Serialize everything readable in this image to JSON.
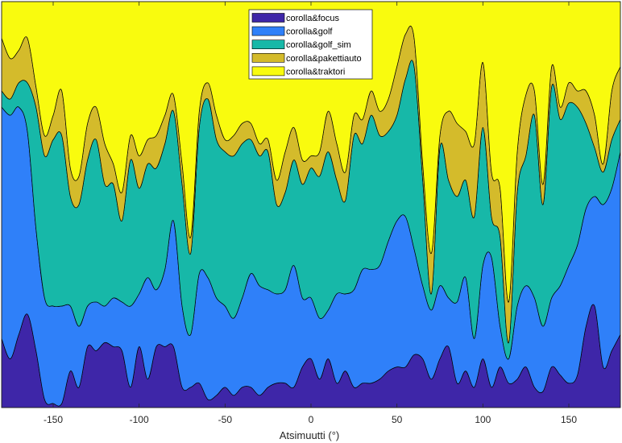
{
  "chart_data": {
    "type": "area",
    "stacked": true,
    "normalized": true,
    "title": "",
    "xlabel": "Atsimuutti (°)",
    "ylabel": "",
    "xlim": [
      -180,
      180
    ],
    "ylim": [
      0,
      1
    ],
    "xticks": [
      -150,
      -100,
      -50,
      0,
      50,
      100,
      150
    ],
    "grid": false,
    "legend_position": "top-center",
    "x": [
      -180,
      -175,
      -170,
      -165,
      -160,
      -155,
      -150,
      -145,
      -140,
      -135,
      -130,
      -125,
      -120,
      -115,
      -110,
      -105,
      -100,
      -95,
      -90,
      -85,
      -80,
      -75,
      -70,
      -65,
      -60,
      -55,
      -50,
      -45,
      -40,
      -35,
      -30,
      -25,
      -20,
      -15,
      -10,
      -5,
      0,
      5,
      10,
      15,
      20,
      25,
      30,
      35,
      40,
      45,
      50,
      55,
      60,
      65,
      70,
      75,
      80,
      85,
      90,
      95,
      100,
      105,
      110,
      115,
      120,
      125,
      130,
      135,
      140,
      145,
      150,
      155,
      160,
      165,
      170,
      175,
      180
    ],
    "series": [
      {
        "name": "corolla&focus",
        "color": "#3e26a8",
        "values": [
          0.17,
          0.12,
          0.18,
          0.23,
          0.14,
          0.02,
          0.01,
          0.01,
          0.09,
          0.05,
          0.15,
          0.14,
          0.16,
          0.15,
          0.14,
          0.05,
          0.15,
          0.07,
          0.15,
          0.15,
          0.15,
          0.05,
          0.05,
          0.06,
          0.02,
          0.03,
          0.05,
          0.03,
          0.05,
          0.05,
          0.03,
          0.05,
          0.06,
          0.06,
          0.05,
          0.1,
          0.12,
          0.07,
          0.12,
          0.06,
          0.09,
          0.05,
          0.06,
          0.06,
          0.07,
          0.09,
          0.1,
          0.1,
          0.13,
          0.12,
          0.07,
          0.12,
          0.15,
          0.06,
          0.09,
          0.05,
          0.12,
          0.05,
          0.1,
          0.06,
          0.07,
          0.1,
          0.05,
          0.04,
          0.1,
          0.08,
          0.06,
          0.08,
          0.2,
          0.25,
          0.1,
          0.14,
          0.18
        ]
      },
      {
        "name": "corolla&golf",
        "color": "#2f80f9",
        "values": [
          0.57,
          0.6,
          0.56,
          0.45,
          0.3,
          0.25,
          0.24,
          0.24,
          0.16,
          0.15,
          0.1,
          0.12,
          0.09,
          0.12,
          0.12,
          0.2,
          0.13,
          0.25,
          0.14,
          0.19,
          0.31,
          0.2,
          0.13,
          0.27,
          0.3,
          0.24,
          0.2,
          0.19,
          0.22,
          0.28,
          0.27,
          0.24,
          0.22,
          0.23,
          0.3,
          0.17,
          0.15,
          0.15,
          0.12,
          0.22,
          0.19,
          0.24,
          0.28,
          0.28,
          0.28,
          0.32,
          0.36,
          0.37,
          0.26,
          0.18,
          0.17,
          0.18,
          0.12,
          0.2,
          0.23,
          0.12,
          0.23,
          0.32,
          0.1,
          0.06,
          0.18,
          0.2,
          0.22,
          0.16,
          0.17,
          0.22,
          0.29,
          0.32,
          0.29,
          0.27,
          0.4,
          0.4,
          0.45
        ]
      },
      {
        "name": "corolla&golf_sim",
        "color": "#17b8a8",
        "values": [
          0.04,
          0.04,
          0.06,
          0.12,
          0.3,
          0.35,
          0.41,
          0.42,
          0.27,
          0.3,
          0.36,
          0.4,
          0.3,
          0.28,
          0.2,
          0.36,
          0.26,
          0.28,
          0.3,
          0.31,
          0.27,
          0.3,
          0.2,
          0.36,
          0.44,
          0.39,
          0.38,
          0.4,
          0.38,
          0.33,
          0.32,
          0.34,
          0.22,
          0.24,
          0.26,
          0.28,
          0.32,
          0.35,
          0.39,
          0.28,
          0.23,
          0.38,
          0.31,
          0.38,
          0.32,
          0.27,
          0.26,
          0.34,
          0.45,
          0.26,
          0.04,
          0.34,
          0.29,
          0.26,
          0.24,
          0.3,
          0.34,
          0.1,
          0.22,
          0.04,
          0.28,
          0.32,
          0.45,
          0.3,
          0.52,
          0.41,
          0.4,
          0.34,
          0.21,
          0.12,
          0.08,
          0.12,
          0.08
        ]
      },
      {
        "name": "corolla&pakettiauto",
        "color": "#d4bb2b",
        "values": [
          0.13,
          0.1,
          0.08,
          0.11,
          0.05,
          0.05,
          0.06,
          0.11,
          0.07,
          0.07,
          0.09,
          0.08,
          0.1,
          0.05,
          0.07,
          0.06,
          0.08,
          0.06,
          0.08,
          0.07,
          0.04,
          0.05,
          0.04,
          0.04,
          0.04,
          0.06,
          0.03,
          0.05,
          0.05,
          0.04,
          0.03,
          0.03,
          0.06,
          0.1,
          0.08,
          0.06,
          0.03,
          0.06,
          0.1,
          0.09,
          0.07,
          0.05,
          0.06,
          0.06,
          0.06,
          0.08,
          0.12,
          0.11,
          0.07,
          0.04,
          0.1,
          0.03,
          0.17,
          0.18,
          0.12,
          0.18,
          0.16,
          0.11,
          0.12,
          0.1,
          0.1,
          0.15,
          0.06,
          0.05,
          0.05,
          0.03,
          0.05,
          0.04,
          0.08,
          0.08,
          0.02,
          0.12,
          0.13
        ]
      },
      {
        "name": "corolla&traktori",
        "color": "#f9fb0e",
        "values": [
          0.09,
          0.14,
          0.12,
          0.09,
          0.21,
          0.33,
          0.28,
          0.22,
          0.41,
          0.43,
          0.3,
          0.26,
          0.35,
          0.4,
          0.47,
          0.33,
          0.38,
          0.34,
          0.33,
          0.28,
          0.23,
          0.4,
          0.58,
          0.27,
          0.2,
          0.28,
          0.34,
          0.33,
          0.3,
          0.3,
          0.35,
          0.34,
          0.44,
          0.37,
          0.31,
          0.39,
          0.38,
          0.37,
          0.27,
          0.35,
          0.42,
          0.28,
          0.29,
          0.22,
          0.27,
          0.24,
          0.16,
          0.08,
          0.09,
          0.4,
          0.62,
          0.33,
          0.27,
          0.3,
          0.32,
          0.35,
          0.15,
          0.42,
          0.46,
          0.74,
          0.37,
          0.23,
          0.22,
          0.45,
          0.16,
          0.26,
          0.2,
          0.22,
          0.22,
          0.28,
          0.4,
          0.22,
          0.16
        ]
      }
    ]
  }
}
